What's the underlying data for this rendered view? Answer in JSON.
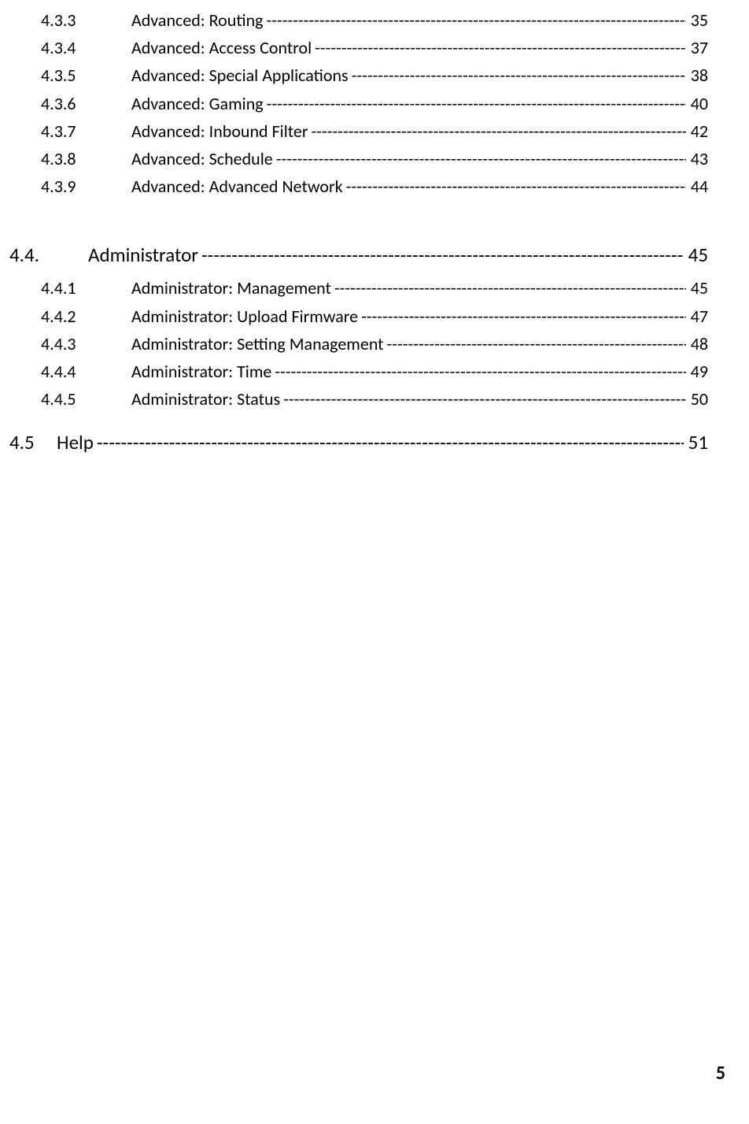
{
  "colors": {
    "background": "#ffffff",
    "text": "#000000"
  },
  "typography": {
    "font_family": "Calibri, Arial, sans-serif",
    "sub_fontsize": 22,
    "main_fontsize": 25,
    "pagenum_fontsize": 24
  },
  "toc": {
    "group1": [
      {
        "num": "4.3.3",
        "title": "Advanced: Routing",
        "page": "35"
      },
      {
        "num": "4.3.4",
        "title": "Advanced: Access Control",
        "page": "37"
      },
      {
        "num": "4.3.5",
        "title": "Advanced: Special Applications",
        "page": "38"
      },
      {
        "num": "4.3.6",
        "title": "Advanced: Gaming",
        "page": "40"
      },
      {
        "num": "4.3.7",
        "title": "Advanced: Inbound Filter",
        "page": "42"
      },
      {
        "num": "4.3.8",
        "title": "Advanced: Schedule",
        "page": "43"
      },
      {
        "num": "4.3.9",
        "title": "Advanced: Advanced Network",
        "page": "44"
      }
    ],
    "section44": {
      "num": "4.4.",
      "title": "Administrator",
      "page": "45"
    },
    "group2": [
      {
        "num": "4.4.1",
        "title": "Administrator: Management",
        "page": "45"
      },
      {
        "num": "4.4.2",
        "title": "Administrator: Upload Firmware",
        "page": "47"
      },
      {
        "num": "4.4.3",
        "title": "Administrator: Setting Management",
        "page": "48"
      },
      {
        "num": "4.4.4",
        "title": "Administrator: Time",
        "page": "49"
      },
      {
        "num": "4.4.5",
        "title": "Administrator: Status",
        "page": "50"
      }
    ],
    "section45": {
      "num": "4.5",
      "title": "Help",
      "page": "51"
    }
  },
  "dashes": "-------------------------------------------------------------------------------------------------------------------------",
  "page_number": "5"
}
